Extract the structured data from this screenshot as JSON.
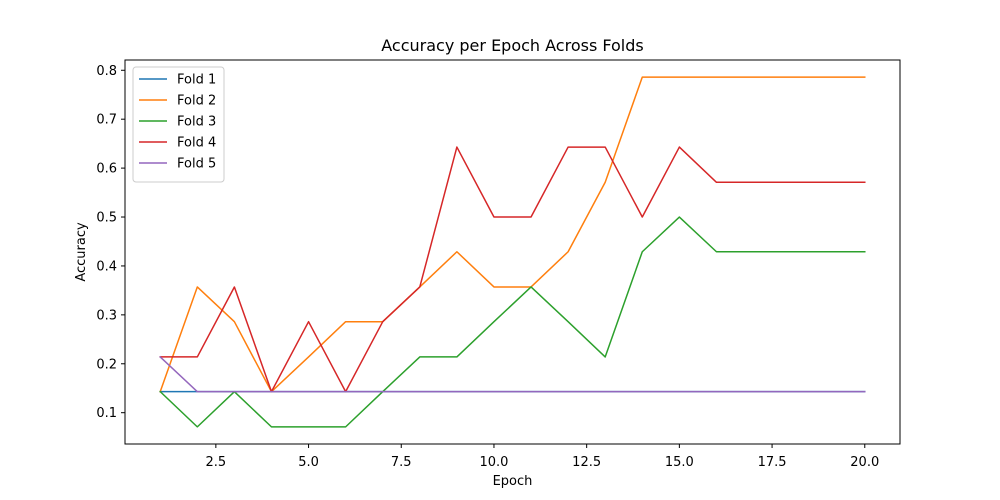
{
  "chart_data": {
    "type": "line",
    "title": "Accuracy per Epoch Across Folds",
    "xlabel": "Epoch",
    "ylabel": "Accuracy",
    "xlim": [
      0.05,
      20.95
    ],
    "ylim": [
      0.036,
      0.821
    ],
    "x_ticks": [
      2.5,
      5.0,
      7.5,
      10.0,
      12.5,
      15.0,
      17.5,
      20.0
    ],
    "x_tick_labels": [
      "2.5",
      "5.0",
      "7.5",
      "10.0",
      "12.5",
      "15.0",
      "17.5",
      "20.0"
    ],
    "y_ticks": [
      0.1,
      0.2,
      0.3,
      0.4,
      0.5,
      0.6,
      0.7,
      0.8
    ],
    "y_tick_labels": [
      "0.1",
      "0.2",
      "0.3",
      "0.4",
      "0.5",
      "0.6",
      "0.7",
      "0.8"
    ],
    "grid": false,
    "legend_position": "upper-left",
    "x": [
      1,
      2,
      3,
      4,
      5,
      6,
      7,
      8,
      9,
      10,
      11,
      12,
      13,
      14,
      15,
      16,
      17,
      18,
      19,
      20
    ],
    "series": [
      {
        "name": "Fold 1",
        "color": "#1f77b4",
        "values": [
          0.143,
          0.143,
          0.143,
          0.143,
          0.143,
          0.143,
          0.143,
          0.143,
          0.143,
          0.143,
          0.143,
          0.143,
          0.143,
          0.143,
          0.143,
          0.143,
          0.143,
          0.143,
          0.143,
          0.143
        ]
      },
      {
        "name": "Fold 2",
        "color": "#ff7f0e",
        "values": [
          0.143,
          0.357,
          0.286,
          0.143,
          0.214,
          0.286,
          0.286,
          0.357,
          0.429,
          0.357,
          0.357,
          0.429,
          0.571,
          0.786,
          0.786,
          0.786,
          0.786,
          0.786,
          0.786,
          0.786
        ]
      },
      {
        "name": "Fold 3",
        "color": "#2ca02c",
        "values": [
          0.143,
          0.071,
          0.143,
          0.071,
          0.071,
          0.071,
          0.143,
          0.214,
          0.214,
          0.286,
          0.357,
          0.286,
          0.214,
          0.429,
          0.5,
          0.429,
          0.429,
          0.429,
          0.429,
          0.429
        ]
      },
      {
        "name": "Fold 4",
        "color": "#d62728",
        "values": [
          0.214,
          0.214,
          0.357,
          0.143,
          0.286,
          0.143,
          0.286,
          0.357,
          0.643,
          0.5,
          0.5,
          0.643,
          0.643,
          0.5,
          0.643,
          0.571,
          0.571,
          0.571,
          0.571,
          0.571
        ]
      },
      {
        "name": "Fold 5",
        "color": "#9467bd",
        "values": [
          0.214,
          0.143,
          0.143,
          0.143,
          0.143,
          0.143,
          0.143,
          0.143,
          0.143,
          0.143,
          0.143,
          0.143,
          0.143,
          0.143,
          0.143,
          0.143,
          0.143,
          0.143,
          0.143,
          0.143
        ]
      }
    ]
  }
}
